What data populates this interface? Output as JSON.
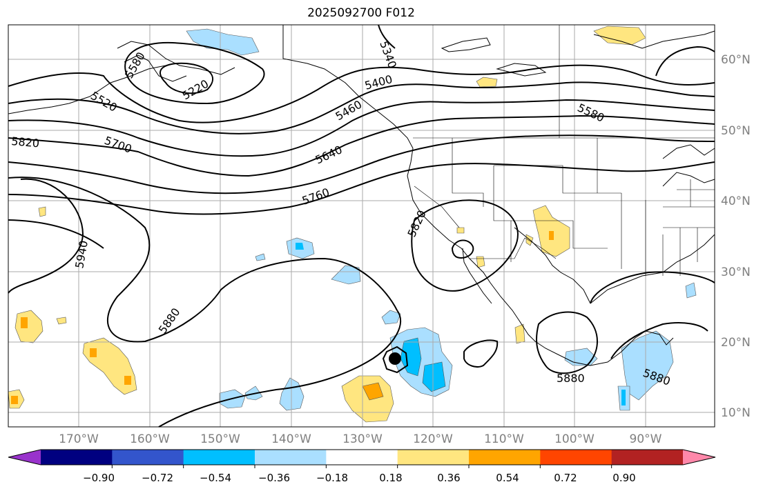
{
  "title": "2025092700 F012",
  "map": {
    "lon_labels": [
      "170°W",
      "160°W",
      "150°W",
      "140°W",
      "130°W",
      "120°W",
      "110°W",
      "100°W",
      "90°W"
    ],
    "lat_labels": [
      "60°N",
      "50°N",
      "40°N",
      "30°N",
      "20°N",
      "10°N"
    ],
    "contour_labels": [
      {
        "text": "5340"
      },
      {
        "text": "5400"
      },
      {
        "text": "5580"
      },
      {
        "text": "5520"
      },
      {
        "text": "5220"
      },
      {
        "text": "5580"
      },
      {
        "text": "5820"
      },
      {
        "text": "5700"
      },
      {
        "text": "5640"
      },
      {
        "text": "5760"
      },
      {
        "text": "5820"
      },
      {
        "text": "5940"
      },
      {
        "text": "5880"
      },
      {
        "text": "5880"
      },
      {
        "text": "5880"
      },
      {
        "text": "5460"
      }
    ],
    "anomaly_color_scale": {
      "colors": [
        "#9933cc",
        "#000080",
        "#3355cc",
        "#00bfff",
        "#aadfff",
        "#ffffff",
        "#ffe680",
        "#ffa500",
        "#ff4500",
        "#b22222",
        "#ff88aa"
      ],
      "tick_labels": [
        "−0.90",
        "−0.72",
        "−0.54",
        "−0.36",
        "−0.18",
        "0.18",
        "0.36",
        "0.54",
        "0.72",
        "0.90"
      ]
    },
    "storm_marker": {
      "symbol": "tropical-cyclone",
      "color": "#000000"
    }
  }
}
